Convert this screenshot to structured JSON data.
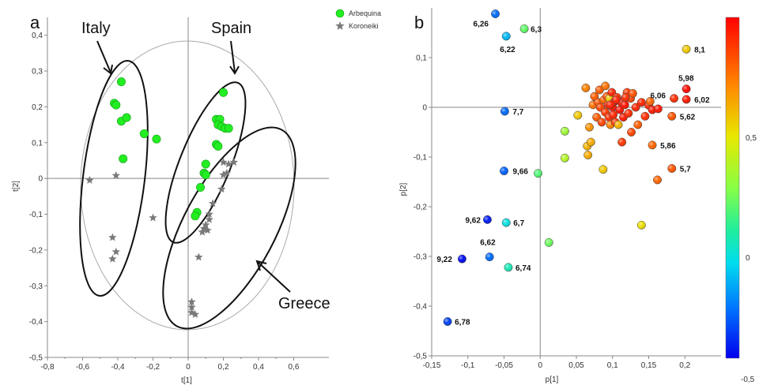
{
  "colors": {
    "arbequina": "#22ee22",
    "koroneiki": "#7a7a7a",
    "axis": "#888888"
  },
  "chart_data": [
    {
      "type": "scatter",
      "panel_label": "a",
      "xlabel": "t[1]",
      "ylabel": "t[2]",
      "xlim": [
        -0.8,
        0.8
      ],
      "ylim": [
        -0.5,
        0.45
      ],
      "x_ticks": [
        "-0,8",
        "-0,7",
        "-0,6",
        "-0,5",
        "-0,4",
        "-0,3",
        "-0,2",
        "-0,1",
        "0",
        "0,1",
        "0,2",
        "0,3",
        "0,4",
        "0,5",
        "0,6"
      ],
      "y_ticks": [
        "-0,5",
        "-0,4",
        "-0,3",
        "-0,2",
        "-0,1",
        "0",
        "0,1",
        "0,2",
        "0,3",
        "0,4"
      ],
      "legend": [
        "Arbequina",
        "Koroneiki"
      ],
      "legend_position": "top-right",
      "region_labels": [
        "Italy",
        "Spain",
        "Greece"
      ],
      "series": [
        {
          "name": "Arbequina",
          "marker": "circle",
          "points": [
            [
              -0.38,
              0.27
            ],
            [
              -0.42,
              0.21
            ],
            [
              -0.41,
              0.205
            ],
            [
              -0.38,
              0.16
            ],
            [
              -0.35,
              0.17
            ],
            [
              -0.25,
              0.125
            ],
            [
              -0.18,
              0.11
            ],
            [
              -0.37,
              0.055
            ],
            [
              0.2,
              0.24
            ],
            [
              0.16,
              0.165
            ],
            [
              0.18,
              0.165
            ],
            [
              0.17,
              0.15
            ],
            [
              0.19,
              0.145
            ],
            [
              0.21,
              0.14
            ],
            [
              0.23,
              0.14
            ],
            [
              0.16,
              0.095
            ],
            [
              0.17,
              0.09
            ],
            [
              0.1,
              0.04
            ],
            [
              0.09,
              0.015
            ],
            [
              0.1,
              0.01
            ],
            [
              0.07,
              -0.025
            ],
            [
              0.05,
              -0.095
            ],
            [
              0.04,
              -0.105
            ]
          ]
        },
        {
          "name": "Koroneiki",
          "marker": "star",
          "points": [
            [
              -0.56,
              -0.005
            ],
            [
              -0.41,
              0.008
            ],
            [
              -0.2,
              -0.11
            ],
            [
              -0.43,
              -0.165
            ],
            [
              -0.41,
              -0.205
            ],
            [
              -0.43,
              -0.225
            ],
            [
              0.2,
              0.045
            ],
            [
              0.23,
              0.04
            ],
            [
              0.26,
              0.045
            ],
            [
              0.2,
              0.01
            ],
            [
              0.22,
              0.015
            ],
            [
              0.19,
              -0.03
            ],
            [
              0.14,
              -0.07
            ],
            [
              0.12,
              -0.1
            ],
            [
              0.12,
              -0.115
            ],
            [
              0.1,
              -0.13
            ],
            [
              0.09,
              -0.14
            ],
            [
              0.11,
              -0.145
            ],
            [
              0.08,
              -0.15
            ],
            [
              0.06,
              -0.22
            ],
            [
              0.02,
              -0.345
            ],
            [
              0.02,
              -0.36
            ],
            [
              0.02,
              -0.375
            ],
            [
              0.04,
              -0.38
            ]
          ]
        }
      ]
    },
    {
      "type": "scatter",
      "panel_label": "b",
      "xlabel": "p[1]",
      "ylabel": "p[2]",
      "xlim": [
        -0.15,
        0.25
      ],
      "ylim": [
        -0.5,
        0.2
      ],
      "x_ticks": [
        "-0,15",
        "-0,1",
        "-0,05",
        "0",
        "0,05",
        "0,1",
        "0,15",
        "0,2"
      ],
      "y_ticks": [
        "-0,5",
        "-0,4",
        "-0,3",
        "-0,2",
        "-0,1",
        "0",
        "0,1"
      ],
      "colorbar": {
        "min": -0.5,
        "max": 1.0,
        "ticks": [
          "0,5",
          "0",
          "-0,5"
        ]
      },
      "labeled_points": [
        {
          "label": "6,26",
          "x": -0.062,
          "y": 0.188,
          "c": -0.3
        },
        {
          "label": "6,3",
          "x": -0.022,
          "y": 0.158,
          "c": 0.18
        },
        {
          "label": "6,22",
          "x": -0.047,
          "y": 0.143,
          "c": -0.15
        },
        {
          "label": "8,1",
          "x": 0.202,
          "y": 0.117,
          "c": 0.55
        },
        {
          "label": "5,98",
          "x": 0.202,
          "y": 0.037,
          "c": 0.98
        },
        {
          "label": "6,06",
          "x": 0.185,
          "y": 0.018,
          "c": 0.9
        },
        {
          "label": "6,02",
          "x": 0.202,
          "y": 0.016,
          "c": 0.95
        },
        {
          "label": "7,7",
          "x": -0.049,
          "y": -0.008,
          "c": -0.3
        },
        {
          "label": "5,62",
          "x": 0.182,
          "y": -0.018,
          "c": 0.82
        },
        {
          "label": "5,86",
          "x": 0.155,
          "y": -0.076,
          "c": 0.78
        },
        {
          "label": "9,66",
          "x": -0.05,
          "y": -0.128,
          "c": -0.32
        },
        {
          "label": "5,7",
          "x": 0.182,
          "y": -0.123,
          "c": 0.82
        },
        {
          "label": "9,62",
          "x": -0.073,
          "y": -0.226,
          "c": -0.45
        },
        {
          "label": "6,7",
          "x": -0.047,
          "y": -0.232,
          "c": -0.05
        },
        {
          "label": "6,62",
          "x": -0.07,
          "y": -0.301,
          "c": -0.3
        },
        {
          "label": "9,22",
          "x": -0.108,
          "y": -0.305,
          "c": -0.48
        },
        {
          "label": "6,74",
          "x": -0.044,
          "y": -0.322,
          "c": 0.02
        },
        {
          "label": "6,78",
          "x": -0.128,
          "y": -0.431,
          "c": -0.38
        }
      ],
      "points": [
        {
          "x": -0.003,
          "y": -0.133,
          "c": 0.15
        },
        {
          "x": 0.012,
          "y": -0.272,
          "c": 0.2
        },
        {
          "x": 0.034,
          "y": -0.048,
          "c": 0.3
        },
        {
          "x": 0.034,
          "y": -0.102,
          "c": 0.35
        },
        {
          "x": 0.052,
          "y": -0.016,
          "c": 0.55
        },
        {
          "x": 0.063,
          "y": 0.039,
          "c": 0.72
        },
        {
          "x": 0.065,
          "y": -0.078,
          "c": 0.6
        },
        {
          "x": 0.066,
          "y": -0.096,
          "c": 0.62
        },
        {
          "x": 0.07,
          "y": -0.07,
          "c": 0.62
        },
        {
          "x": 0.068,
          "y": -0.04,
          "c": 0.68
        },
        {
          "x": 0.073,
          "y": 0.005,
          "c": 0.75
        },
        {
          "x": 0.075,
          "y": 0.022,
          "c": 0.8
        },
        {
          "x": 0.078,
          "y": -0.02,
          "c": 0.8
        },
        {
          "x": 0.08,
          "y": 0.01,
          "c": 0.82
        },
        {
          "x": 0.082,
          "y": 0.035,
          "c": 0.8
        },
        {
          "x": 0.083,
          "y": 0.0,
          "c": 0.85
        },
        {
          "x": 0.085,
          "y": -0.03,
          "c": 0.85
        },
        {
          "x": 0.087,
          "y": -0.125,
          "c": 0.55
        },
        {
          "x": 0.088,
          "y": 0.015,
          "c": 0.78
        },
        {
          "x": 0.09,
          "y": -0.01,
          "c": 0.88
        },
        {
          "x": 0.09,
          "y": 0.043,
          "c": 0.75
        },
        {
          "x": 0.092,
          "y": 0.022,
          "c": 0.85
        },
        {
          "x": 0.094,
          "y": 0.005,
          "c": 0.9
        },
        {
          "x": 0.095,
          "y": -0.02,
          "c": 0.9
        },
        {
          "x": 0.096,
          "y": 0.018,
          "c": 0.55
        },
        {
          "x": 0.097,
          "y": -0.035,
          "c": 0.72
        },
        {
          "x": 0.099,
          "y": 0.03,
          "c": 0.92
        },
        {
          "x": 0.1,
          "y": 0.0,
          "c": 0.95
        },
        {
          "x": 0.101,
          "y": -0.015,
          "c": 0.92
        },
        {
          "x": 0.103,
          "y": 0.012,
          "c": 0.95
        },
        {
          "x": 0.104,
          "y": -0.03,
          "c": 0.88
        },
        {
          "x": 0.106,
          "y": 0.02,
          "c": 0.9
        },
        {
          "x": 0.108,
          "y": -0.035,
          "c": 0.6
        },
        {
          "x": 0.11,
          "y": -0.005,
          "c": 0.96
        },
        {
          "x": 0.112,
          "y": 0.01,
          "c": 0.94
        },
        {
          "x": 0.113,
          "y": -0.07,
          "c": 0.88
        },
        {
          "x": 0.115,
          "y": -0.02,
          "c": 0.95
        },
        {
          "x": 0.117,
          "y": 0.005,
          "c": 0.96
        },
        {
          "x": 0.12,
          "y": 0.03,
          "c": 0.88
        },
        {
          "x": 0.122,
          "y": -0.012,
          "c": 0.9
        },
        {
          "x": 0.125,
          "y": 0.018,
          "c": 0.85
        },
        {
          "x": 0.126,
          "y": -0.05,
          "c": 0.85
        },
        {
          "x": 0.128,
          "y": 0.028,
          "c": 0.82
        },
        {
          "x": 0.132,
          "y": 0.0,
          "c": 0.92
        },
        {
          "x": 0.135,
          "y": -0.035,
          "c": 0.8
        },
        {
          "x": 0.14,
          "y": 0.01,
          "c": 0.92
        },
        {
          "x": 0.145,
          "y": -0.018,
          "c": 0.9
        },
        {
          "x": 0.15,
          "y": 0.004,
          "c": 0.92
        },
        {
          "x": 0.152,
          "y": 0.012,
          "c": 0.78
        },
        {
          "x": 0.155,
          "y": -0.005,
          "c": 0.95
        },
        {
          "x": 0.162,
          "y": -0.146,
          "c": 0.78
        },
        {
          "x": 0.163,
          "y": -0.003,
          "c": 0.95
        },
        {
          "x": 0.14,
          "y": -0.237,
          "c": 0.5
        },
        {
          "x": 0.118,
          "y": 0.02,
          "c": 0.9
        },
        {
          "x": 0.105,
          "y": 0.015,
          "c": 0.93
        },
        {
          "x": 0.097,
          "y": 0.005,
          "c": 0.93
        }
      ]
    }
  ]
}
